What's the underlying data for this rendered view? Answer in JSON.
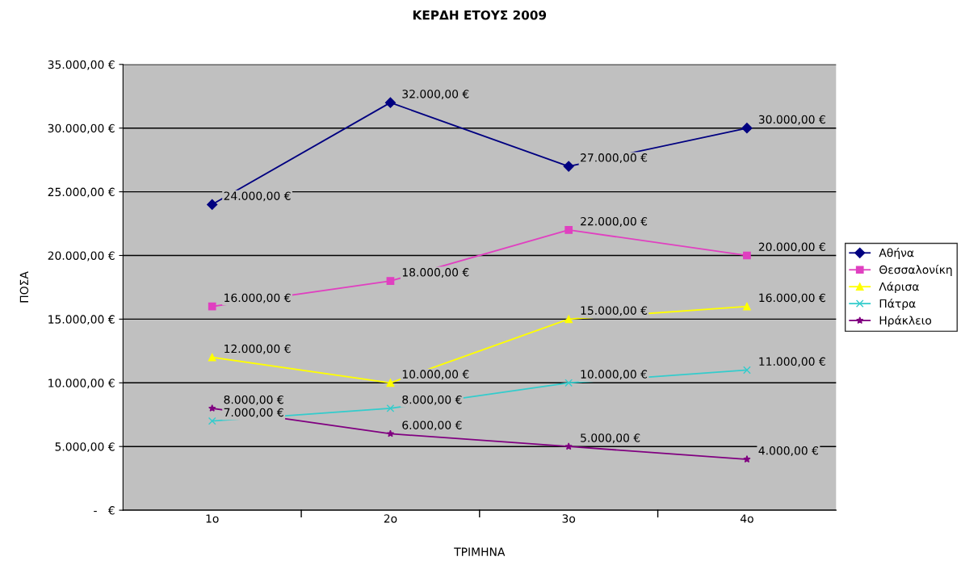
{
  "chart_data": {
    "type": "line",
    "title": "ΚΕΡΔΗ ΕΤΟΥΣ 2009",
    "xlabel": "ΤΡΙΜΗΝΑ",
    "ylabel": "ΠΟΣΑ",
    "categories": [
      "1ο",
      "2ο",
      "3ο",
      "4ο"
    ],
    "series": [
      {
        "name": "Αθήνα",
        "color": "#000080",
        "marker": "diamond",
        "values": [
          24000,
          32000,
          27000,
          30000
        ],
        "value_labels": [
          "24.000,00 €",
          "32.000,00 €",
          "27.000,00 €",
          "30.000,00 €"
        ]
      },
      {
        "name": "Θεσσαλονίκη",
        "color": "#e040c0",
        "marker": "square",
        "values": [
          16000,
          18000,
          22000,
          20000
        ],
        "value_labels": [
          "16.000,00 €",
          "18.000,00 €",
          "22.000,00 €",
          "20.000,00 €"
        ]
      },
      {
        "name": "Λάρισα",
        "color": "#ffff00",
        "marker": "triangle",
        "values": [
          12000,
          10000,
          15000,
          16000
        ],
        "value_labels": [
          "12.000,00 €",
          "10.000,00 €",
          "15.000,00 €",
          "16.000,00 €"
        ]
      },
      {
        "name": "Πάτρα",
        "color": "#33cccc",
        "marker": "cross",
        "values": [
          7000,
          8000,
          10000,
          11000
        ],
        "value_labels": [
          "7.000,00 €",
          "8.000,00 €",
          "10.000,00 €",
          "11.000,00 €"
        ]
      },
      {
        "name": "Ηράκλειο",
        "color": "#800080",
        "marker": "star",
        "values": [
          8000,
          6000,
          5000,
          4000
        ],
        "value_labels": [
          "8.000,00 €",
          "6.000,00 €",
          "5.000,00 €",
          "4.000,00 €"
        ]
      }
    ],
    "ylim": [
      0,
      35000
    ],
    "yticks": [
      {
        "value": 0,
        "label": "-   €"
      },
      {
        "value": 5000,
        "label": "5.000,00 €"
      },
      {
        "value": 10000,
        "label": "10.000,00 €"
      },
      {
        "value": 15000,
        "label": "15.000,00 €"
      },
      {
        "value": 20000,
        "label": "20.000,00 €"
      },
      {
        "value": 25000,
        "label": "25.000,00 €"
      },
      {
        "value": 30000,
        "label": "30.000,00 €"
      },
      {
        "value": 35000,
        "label": "35.000,00 €"
      }
    ],
    "grid": "y",
    "legend": "right",
    "line_style": "solid"
  }
}
